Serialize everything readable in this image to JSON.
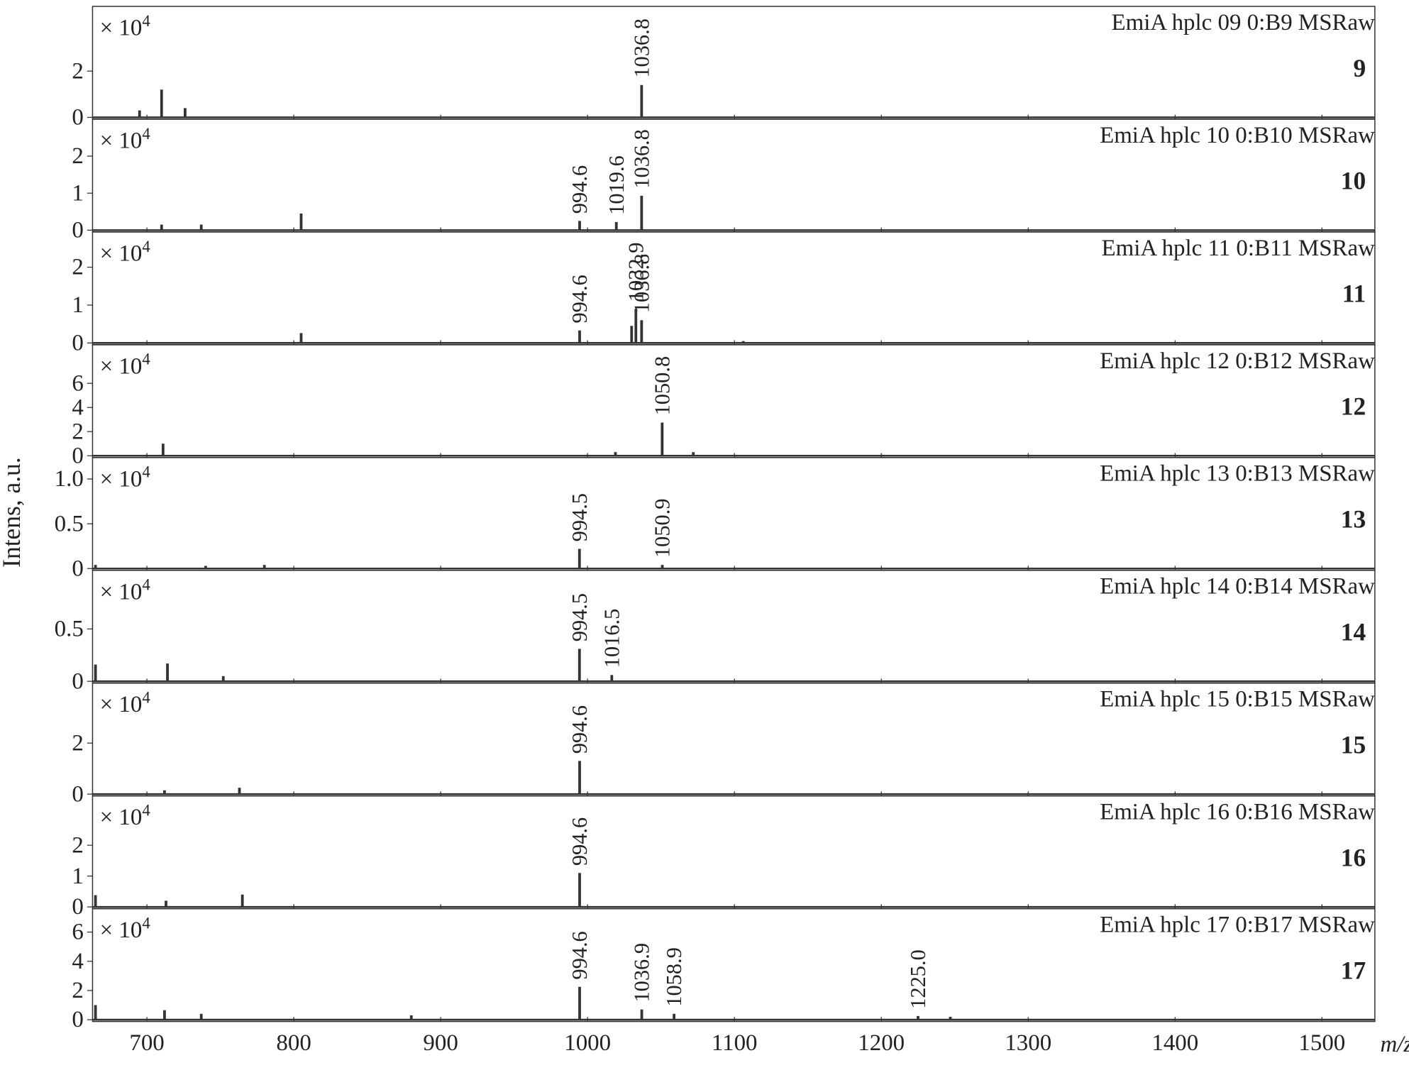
{
  "axes": {
    "xlim": [
      663,
      1536
    ],
    "xticks": [
      700,
      800,
      900,
      1000,
      1100,
      1200,
      1300,
      1400,
      1500
    ],
    "xlabel": "m/z",
    "ylabel": "Intens, a.u.",
    "multiplier_base": "× 10",
    "multiplier_exp": "4"
  },
  "chart_data": [
    {
      "type": "bar",
      "title": "EmiA hplc 09 0:B9 MSRaw",
      "label": "9",
      "ylim": [
        0,
        4.8
      ],
      "yticks": [
        0,
        2
      ],
      "x": [
        695,
        710,
        726,
        1036.8
      ],
      "values": [
        0.3,
        1.2,
        0.4,
        1.4
      ],
      "x_labels": [
        null,
        null,
        null,
        "1036.8"
      ]
    },
    {
      "type": "bar",
      "title": "EmiA hplc 10 0:B10 MSRaw",
      "label": "10",
      "ylim": [
        0,
        3.0
      ],
      "yticks": [
        0,
        1,
        2
      ],
      "x": [
        710,
        737,
        805,
        994.6,
        1019.6,
        1036.8
      ],
      "values": [
        0.15,
        0.15,
        0.45,
        0.25,
        0.22,
        0.93
      ],
      "x_labels": [
        null,
        null,
        null,
        "994.6",
        "1019.6",
        "1036.8"
      ]
    },
    {
      "type": "bar",
      "title": "EmiA hplc 11 0:B11 MSRaw",
      "label": "11",
      "ylim": [
        0,
        2.93
      ],
      "yticks": [
        0,
        1,
        2
      ],
      "x": [
        805,
        994.6,
        1030,
        1032.9,
        1036.8,
        1106
      ],
      "values": [
        0.26,
        0.33,
        0.45,
        0.9,
        0.6,
        0.05
      ],
      "x_labels": [
        null,
        "994.6",
        null,
        "1032.9",
        "1036.8",
        null
      ]
    },
    {
      "type": "bar",
      "title": "EmiA hplc 12 0:B12 MSRaw",
      "label": "12",
      "ylim": [
        0,
        9.2
      ],
      "yticks": [
        0,
        2,
        4,
        6
      ],
      "x": [
        711,
        1019,
        1050.8,
        1072
      ],
      "values": [
        1.0,
        0.3,
        2.75,
        0.3
      ],
      "x_labels": [
        null,
        null,
        "1050.8",
        null
      ]
    },
    {
      "type": "bar",
      "title": "EmiA hplc 13 0:B13 MSRaw",
      "label": "13",
      "ylim": [
        0,
        1.24
      ],
      "yticks": [
        0,
        0.5,
        {
          "value": 1,
          "label": "1.0"
        }
      ],
      "x": [
        665,
        740,
        780,
        994.5,
        1050.9
      ],
      "values": [
        0.04,
        0.03,
        0.04,
        0.22,
        0.04
      ],
      "x_labels": [
        null,
        null,
        null,
        "994.5",
        "1050.9"
      ]
    },
    {
      "type": "bar",
      "title": "EmiA hplc 14 0:B14 MSRaw",
      "label": "14",
      "ylim": [
        0,
        1.06
      ],
      "yticks": [
        0,
        0.5
      ],
      "x": [
        665,
        714,
        752,
        994.5,
        1016.5
      ],
      "values": [
        0.16,
        0.17,
        0.05,
        0.31,
        0.06
      ],
      "x_labels": [
        null,
        null,
        null,
        "994.5",
        "1016.5"
      ]
    },
    {
      "type": "bar",
      "title": "EmiA hplc 15 0:B15 MSRaw",
      "label": "15",
      "ylim": [
        0,
        4.35
      ],
      "yticks": [
        0,
        2
      ],
      "x": [
        712,
        763,
        994.6
      ],
      "values": [
        0.15,
        0.25,
        1.3
      ],
      "x_labels": [
        null,
        null,
        "994.6"
      ]
    },
    {
      "type": "bar",
      "title": "EmiA hplc 16 0:B16 MSRaw",
      "label": "16",
      "ylim": [
        0,
        3.6
      ],
      "yticks": [
        0,
        1,
        2
      ],
      "x": [
        665,
        713,
        765,
        994.6
      ],
      "values": [
        0.38,
        0.2,
        0.4,
        1.1
      ],
      "x_labels": [
        null,
        null,
        null,
        "994.6"
      ]
    },
    {
      "type": "bar",
      "title": "EmiA hplc 17 0:B17 MSRaw",
      "label": "17",
      "ylim": [
        0,
        7.6
      ],
      "yticks": [
        0,
        2,
        4,
        6
      ],
      "x": [
        665,
        712,
        737,
        880,
        994.6,
        1036.9,
        1058.9,
        1225.0,
        1247
      ],
      "values": [
        1.0,
        0.65,
        0.4,
        0.3,
        2.25,
        0.7,
        0.4,
        0.25,
        0.2
      ],
      "x_labels": [
        null,
        null,
        null,
        null,
        "994.6",
        "1036.9",
        "1058.9",
        "1225.0",
        null
      ]
    }
  ]
}
